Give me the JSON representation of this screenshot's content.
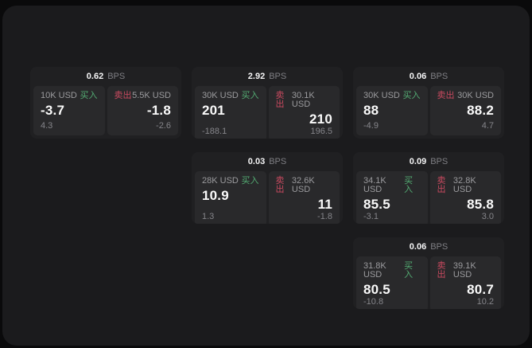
{
  "labels": {
    "bps_unit": "BPS",
    "buy": "买入",
    "sell": "卖出"
  },
  "colors": {
    "buy": "#53ab72",
    "sell": "#ca4a60"
  },
  "cards": [
    {
      "bps": "0.62",
      "grid": {
        "row": 1,
        "col": 1
      },
      "buy": {
        "amount": "10K USD",
        "value": "-3.7",
        "sub": "4.3"
      },
      "sell": {
        "amount": "5.5K USD",
        "value": "-1.8",
        "sub": "-2.6"
      }
    },
    {
      "bps": "2.92",
      "grid": {
        "row": 1,
        "col": 2
      },
      "buy": {
        "amount": "30K USD",
        "value": "201",
        "sub": "-188.1"
      },
      "sell": {
        "amount": "30.1K USD",
        "value": "210",
        "sub": "196.5"
      }
    },
    {
      "bps": "0.06",
      "grid": {
        "row": 1,
        "col": 3
      },
      "buy": {
        "amount": "30K USD",
        "value": "88",
        "sub": "-4.9"
      },
      "sell": {
        "amount": "30K USD",
        "value": "88.2",
        "sub": "4.7"
      }
    },
    {
      "bps": "0.03",
      "grid": {
        "row": 2,
        "col": 2
      },
      "buy": {
        "amount": "28K USD",
        "value": "10.9",
        "sub": "1.3"
      },
      "sell": {
        "amount": "32.6K USD",
        "value": "11",
        "sub": "-1.8"
      }
    },
    {
      "bps": "0.09",
      "grid": {
        "row": 2,
        "col": 3
      },
      "buy": {
        "amount": "34.1K USD",
        "value": "85.5",
        "sub": "-3.1"
      },
      "sell": {
        "amount": "32.8K USD",
        "value": "85.8",
        "sub": "3.0"
      }
    },
    {
      "bps": "0.06",
      "grid": {
        "row": 3,
        "col": 3
      },
      "buy": {
        "amount": "31.8K USD",
        "value": "80.5",
        "sub": "-10.8"
      },
      "sell": {
        "amount": "39.1K USD",
        "value": "80.7",
        "sub": "10.2"
      }
    }
  ]
}
